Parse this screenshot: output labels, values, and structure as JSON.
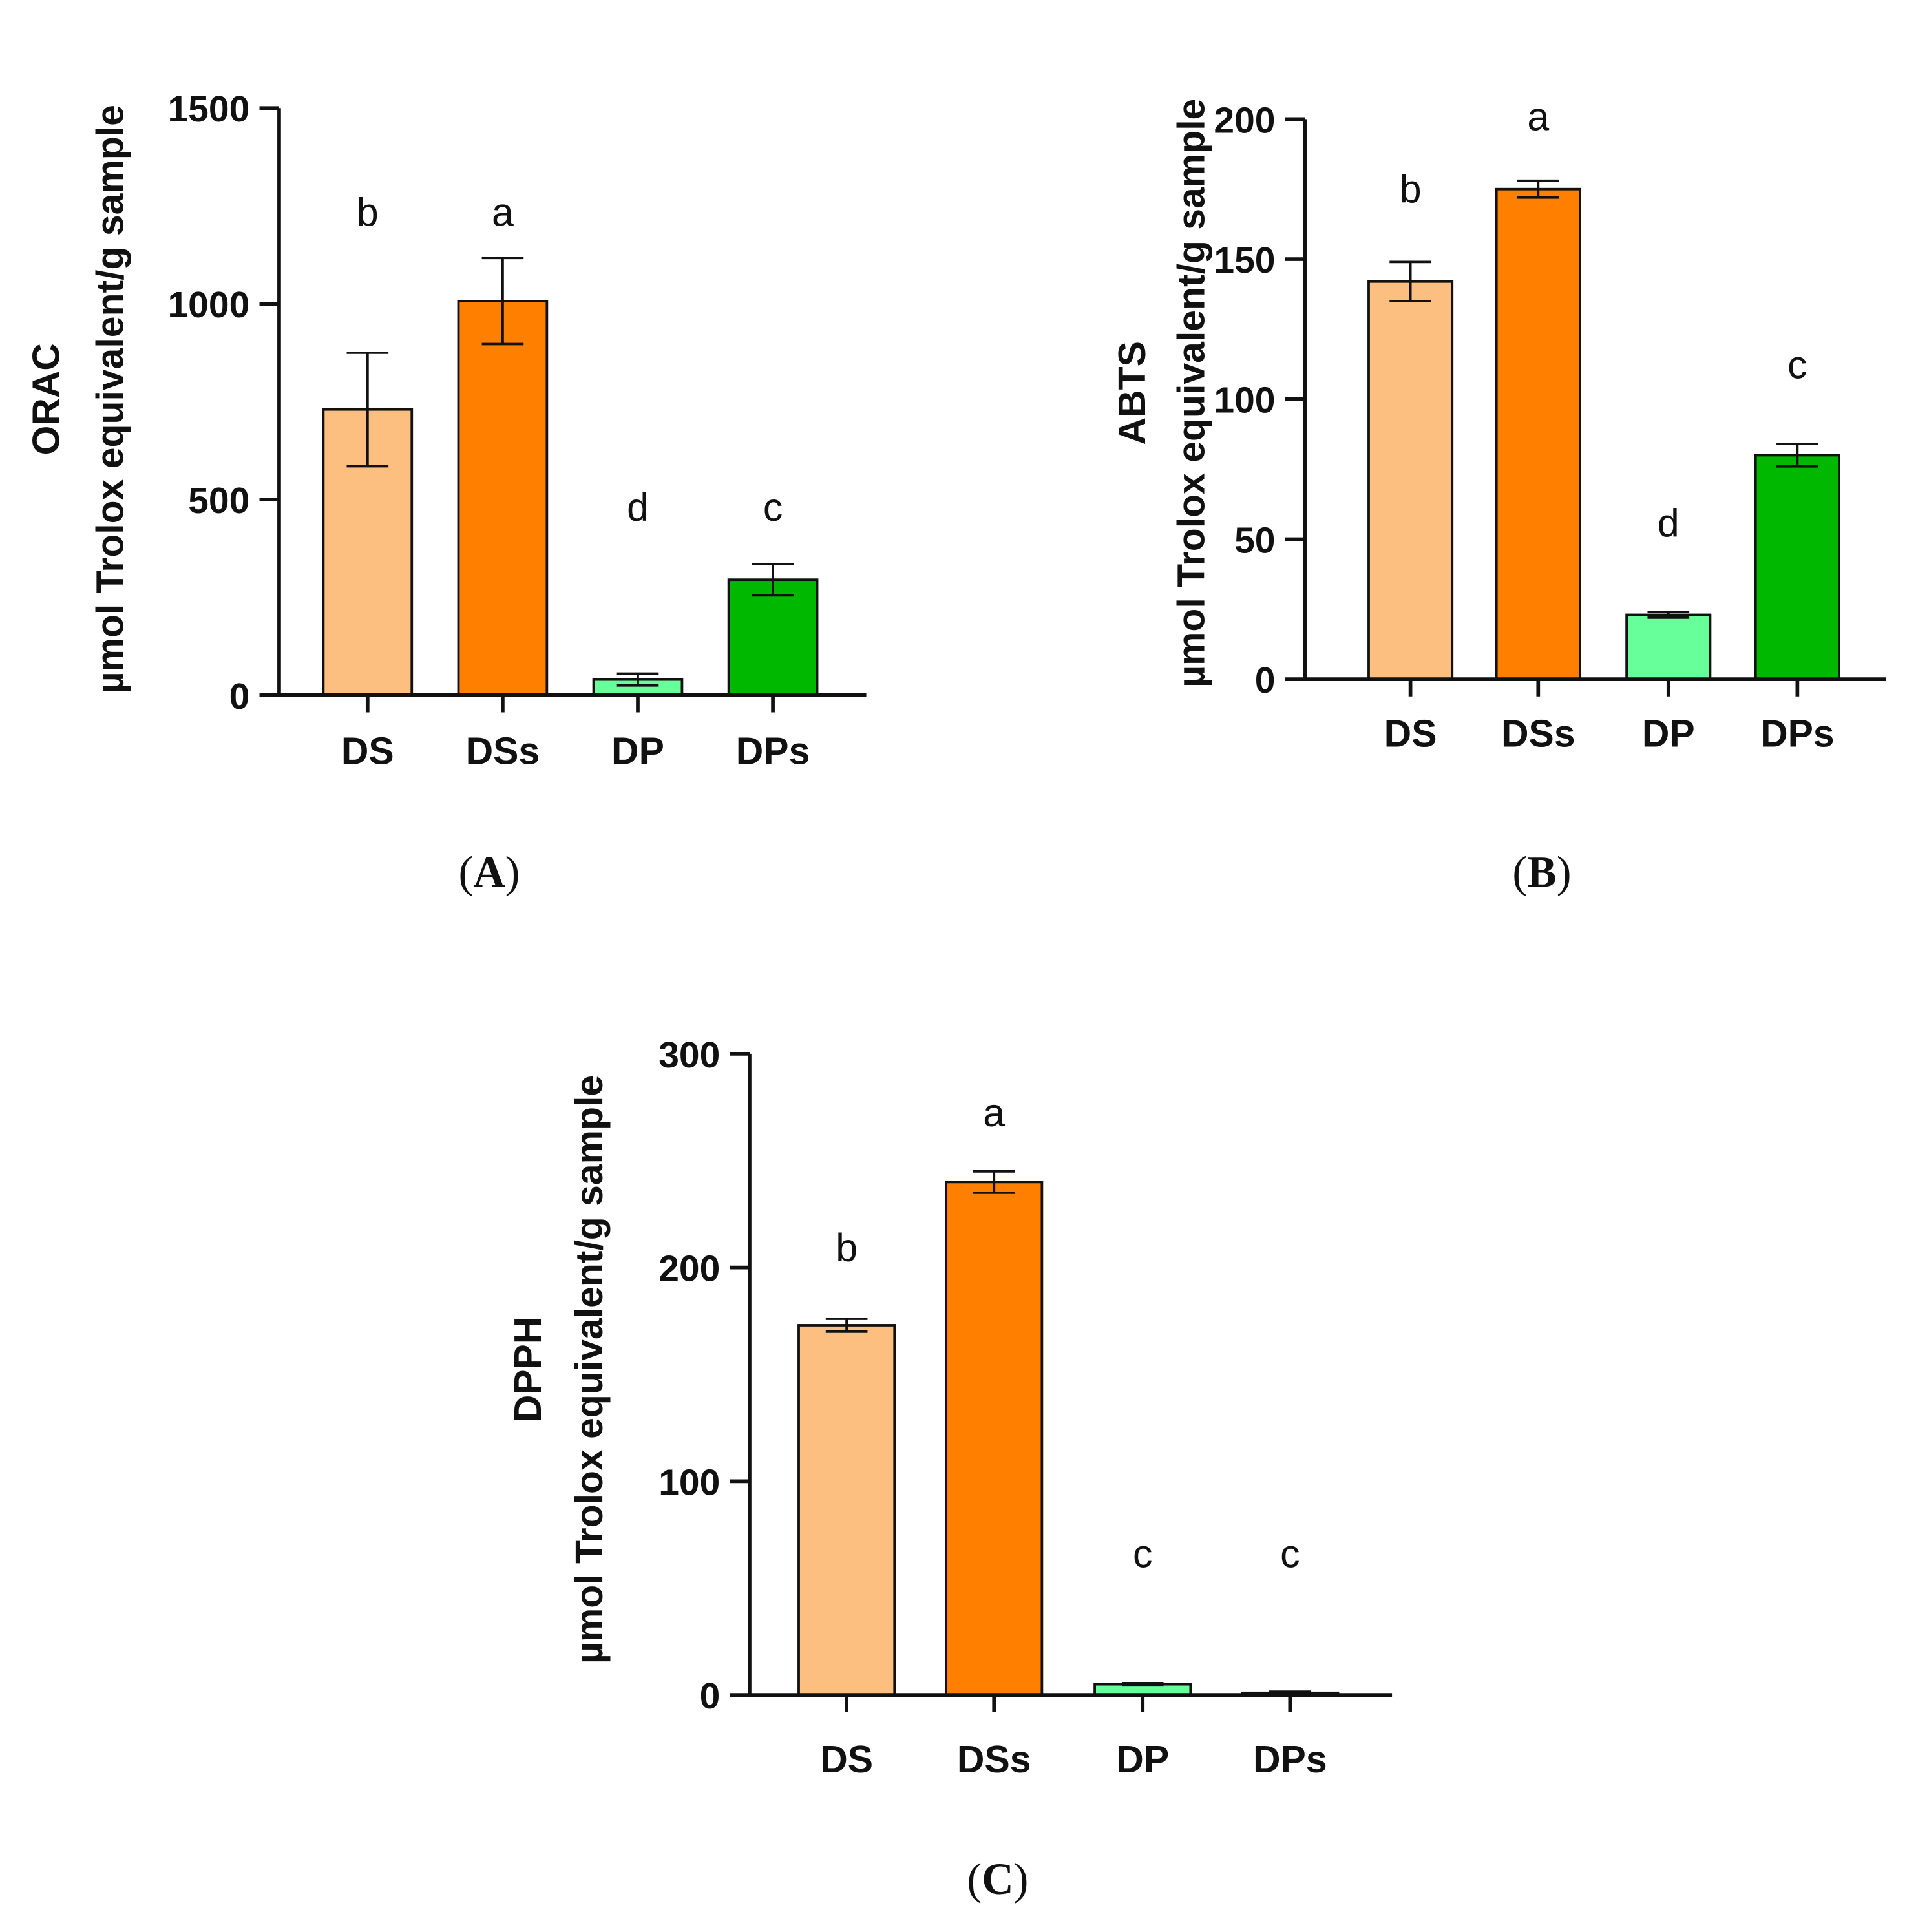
{
  "chart_data": [
    {
      "type": "bar",
      "panel": "A",
      "ylabel_main": "ORAC",
      "ylabel_unit": "µmol Trolox equivalent/g sample",
      "categories": [
        "DS",
        "DSs",
        "DP",
        "DPs"
      ],
      "values": [
        730,
        1007,
        40,
        295
      ],
      "errors": [
        145,
        110,
        15,
        40
      ],
      "significance": [
        "b",
        "a",
        "d",
        "c"
      ],
      "colors": [
        "#FDBF80",
        "#FF8000",
        "#66FF99",
        "#00B800"
      ],
      "ylim": [
        0,
        1500
      ],
      "yticks": [
        0,
        500,
        1000,
        1500
      ]
    },
    {
      "type": "bar",
      "panel": "B",
      "ylabel_main": "ABTS",
      "ylabel_unit": "µmol Trolox equivalent/g sample",
      "categories": [
        "DS",
        "DSs",
        "DP",
        "DPs"
      ],
      "values": [
        142,
        175,
        23,
        80
      ],
      "errors": [
        7,
        3,
        1,
        4
      ],
      "significance": [
        "b",
        "a",
        "d",
        "c"
      ],
      "colors": [
        "#FDBF80",
        "#FF8000",
        "#66FF99",
        "#00B800"
      ],
      "ylim": [
        0,
        200
      ],
      "yticks": [
        0,
        50,
        100,
        150,
        200
      ]
    },
    {
      "type": "bar",
      "panel": "C",
      "ylabel_main": "DPPH",
      "ylabel_unit": "µmol Trolox equivalent/g sample",
      "categories": [
        "DS",
        "DSs",
        "DP",
        "DPs"
      ],
      "values": [
        173,
        240,
        5,
        1
      ],
      "errors": [
        3,
        5,
        0.5,
        0.5
      ],
      "significance": [
        "b",
        "a",
        "c",
        "c"
      ],
      "colors": [
        "#FDBF80",
        "#FF8000",
        "#66FF99",
        "#00B800"
      ],
      "ylim": [
        0,
        300
      ],
      "yticks": [
        0,
        100,
        200,
        300
      ]
    }
  ]
}
